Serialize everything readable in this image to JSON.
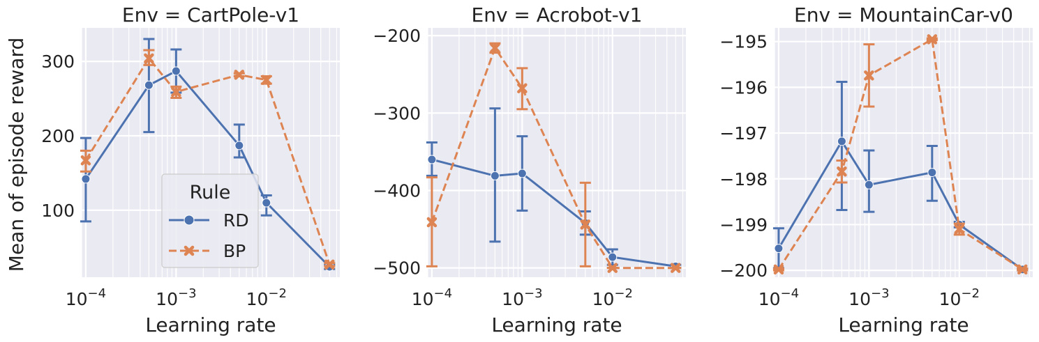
{
  "figure": {
    "ylabel": "Mean of episode reward",
    "legend": {
      "title": "Rule",
      "placement": "lower-right of first panel"
    },
    "colors": {
      "RD": "#4c72b0",
      "BP": "#dd8452",
      "background": "#eaeaf2",
      "grid": "#ffffff"
    }
  },
  "chart_data": [
    {
      "type": "line",
      "title": "Env = CartPole-v1",
      "xlabel": "Learning rate",
      "xscale": "log",
      "xlim": [
        9e-05,
        0.065
      ],
      "ylim": [
        10,
        345
      ],
      "yticks": [
        100,
        200,
        300
      ],
      "xticks": [
        {
          "value": 0.0001,
          "base": "10",
          "exp": "−4"
        },
        {
          "value": 0.001,
          "base": "10",
          "exp": "−3"
        },
        {
          "value": 0.01,
          "base": "10",
          "exp": "−2"
        }
      ],
      "grid": true,
      "legend": true,
      "series": [
        {
          "name": "RD",
          "marker": "circle",
          "dashed": false,
          "points": [
            {
              "x": 0.0001,
              "y": 142,
              "lo": 85,
              "hi": 197
            },
            {
              "x": 0.0005,
              "y": 268,
              "lo": 205,
              "hi": 330
            },
            {
              "x": 0.001,
              "y": 287,
              "lo": 258,
              "hi": 316
            },
            {
              "x": 0.005,
              "y": 187,
              "lo": 171,
              "hi": 215
            },
            {
              "x": 0.01,
              "y": 110,
              "lo": 93,
              "hi": 120
            },
            {
              "x": 0.05,
              "y": 24,
              "lo": 21,
              "hi": 27
            }
          ]
        },
        {
          "name": "BP",
          "marker": "x",
          "dashed": true,
          "points": [
            {
              "x": 0.0001,
              "y": 167,
              "lo": 152,
              "hi": 180
            },
            {
              "x": 0.0005,
              "y": 304,
              "lo": 295,
              "hi": 315
            },
            {
              "x": 0.001,
              "y": 259,
              "lo": 251,
              "hi": 266
            },
            {
              "x": 0.005,
              "y": 282,
              "lo": 280,
              "hi": 284
            },
            {
              "x": 0.01,
              "y": 275,
              "lo": 270,
              "hi": 280
            },
            {
              "x": 0.05,
              "y": 27,
              "lo": 25,
              "hi": 29
            }
          ]
        }
      ]
    },
    {
      "type": "line",
      "title": "Env = Acrobot-v1",
      "xlabel": "Learning rate",
      "xscale": "log",
      "xlim": [
        9e-05,
        0.065
      ],
      "ylim": [
        -512,
        -190
      ],
      "yticks": [
        -200,
        -300,
        -400,
        -500
      ],
      "xticks": [
        {
          "value": 0.0001,
          "base": "10",
          "exp": "−4"
        },
        {
          "value": 0.001,
          "base": "10",
          "exp": "−3"
        },
        {
          "value": 0.01,
          "base": "10",
          "exp": "−2"
        }
      ],
      "grid": true,
      "legend": false,
      "series": [
        {
          "name": "RD",
          "marker": "circle",
          "dashed": false,
          "points": [
            {
              "x": 0.0001,
              "y": -360,
              "lo": -381,
              "hi": -338
            },
            {
              "x": 0.0005,
              "y": -381,
              "lo": -466,
              "hi": -294
            },
            {
              "x": 0.001,
              "y": -378,
              "lo": -426,
              "hi": -330
            },
            {
              "x": 0.005,
              "y": -442,
              "lo": -457,
              "hi": -427
            },
            {
              "x": 0.01,
              "y": -486,
              "lo": -496,
              "hi": -476
            },
            {
              "x": 0.05,
              "y": -498,
              "lo": -500,
              "hi": -496
            }
          ]
        },
        {
          "name": "BP",
          "marker": "x",
          "dashed": true,
          "points": [
            {
              "x": 0.0001,
              "y": -441,
              "lo": -498,
              "hi": -383
            },
            {
              "x": 0.0005,
              "y": -216,
              "lo": -222,
              "hi": -210
            },
            {
              "x": 0.001,
              "y": -268,
              "lo": -295,
              "hi": -242
            },
            {
              "x": 0.005,
              "y": -444,
              "lo": -498,
              "hi": -390
            },
            {
              "x": 0.01,
              "y": -500,
              "lo": -500,
              "hi": -500
            },
            {
              "x": 0.05,
              "y": -500,
              "lo": -500,
              "hi": -500
            }
          ]
        }
      ]
    },
    {
      "type": "line",
      "title": "Env = MountainCar-v0",
      "xlabel": "Learning rate",
      "xscale": "log",
      "xlim": [
        9e-05,
        0.065
      ],
      "ylim": [
        -200.15,
        -194.7
      ],
      "yticks": [
        -195,
        -196,
        -197,
        -198,
        -199,
        -200
      ],
      "xticks": [
        {
          "value": 0.0001,
          "base": "10",
          "exp": "−4"
        },
        {
          "value": 0.001,
          "base": "10",
          "exp": "−3"
        },
        {
          "value": 0.01,
          "base": "10",
          "exp": "−2"
        }
      ],
      "grid": true,
      "legend": false,
      "series": [
        {
          "name": "RD",
          "marker": "circle",
          "dashed": false,
          "points": [
            {
              "x": 0.0001,
              "y": -199.52,
              "lo": -199.95,
              "hi": -199.08
            },
            {
              "x": 0.0005,
              "y": -197.18,
              "lo": -198.68,
              "hi": -195.88
            },
            {
              "x": 0.001,
              "y": -198.13,
              "lo": -198.72,
              "hi": -197.38
            },
            {
              "x": 0.005,
              "y": -197.86,
              "lo": -198.48,
              "hi": -197.28
            },
            {
              "x": 0.01,
              "y": -199.0,
              "lo": -199.06,
              "hi": -198.94
            },
            {
              "x": 0.05,
              "y": -199.98,
              "lo": -200.0,
              "hi": -199.96
            }
          ]
        },
        {
          "name": "BP",
          "marker": "x",
          "dashed": true,
          "points": [
            {
              "x": 0.0001,
              "y": -199.98,
              "lo": -200.0,
              "hi": -199.96
            },
            {
              "x": 0.0005,
              "y": -197.84,
              "lo": -198.08,
              "hi": -197.6
            },
            {
              "x": 0.001,
              "y": -195.74,
              "lo": -196.42,
              "hi": -195.06
            },
            {
              "x": 0.005,
              "y": -194.95,
              "lo": -194.97,
              "hi": -194.93
            },
            {
              "x": 0.01,
              "y": -199.1,
              "lo": -199.22,
              "hi": -198.98
            },
            {
              "x": 0.05,
              "y": -199.98,
              "lo": -200.0,
              "hi": -199.96
            }
          ]
        }
      ]
    }
  ]
}
